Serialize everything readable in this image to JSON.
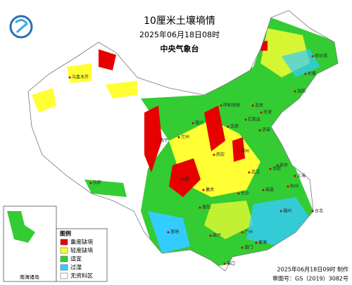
{
  "header": {
    "title": "10厘米土壤墒情",
    "subtitle": "2025年06月18日08时",
    "publisher": "中央气象台"
  },
  "legend": {
    "title": "图例",
    "items": [
      {
        "label": "重度缺墒",
        "color": "#e60000"
      },
      {
        "label": "轻度缺墒",
        "color": "#ffff33"
      },
      {
        "label": "适宜",
        "color": "#33cc33"
      },
      {
        "label": "过湿",
        "color": "#33ccff"
      },
      {
        "label": "无资料区",
        "color": "#ffffff"
      }
    ]
  },
  "map": {
    "labels": [
      "北京",
      "天津",
      "石家庄",
      "太原",
      "郑州",
      "武汉",
      "长沙",
      "南昌",
      "上海",
      "南京",
      "杭州",
      "福州",
      "广州",
      "南宁",
      "昆明",
      "贵阳",
      "成都",
      "重庆",
      "西安",
      "兰州",
      "西宁",
      "拉萨",
      "乌鲁木齐",
      "呼和浩特",
      "沈阳",
      "长春",
      "哈尔滨",
      "济南",
      "合肥",
      "银川",
      "海口",
      "台北",
      "香港",
      "澳门"
    ],
    "inset_label": "南海诸岛"
  },
  "footer": {
    "made": "2025年06月18日09时 制作",
    "approval": "审图号：GS（2019）3082号"
  }
}
